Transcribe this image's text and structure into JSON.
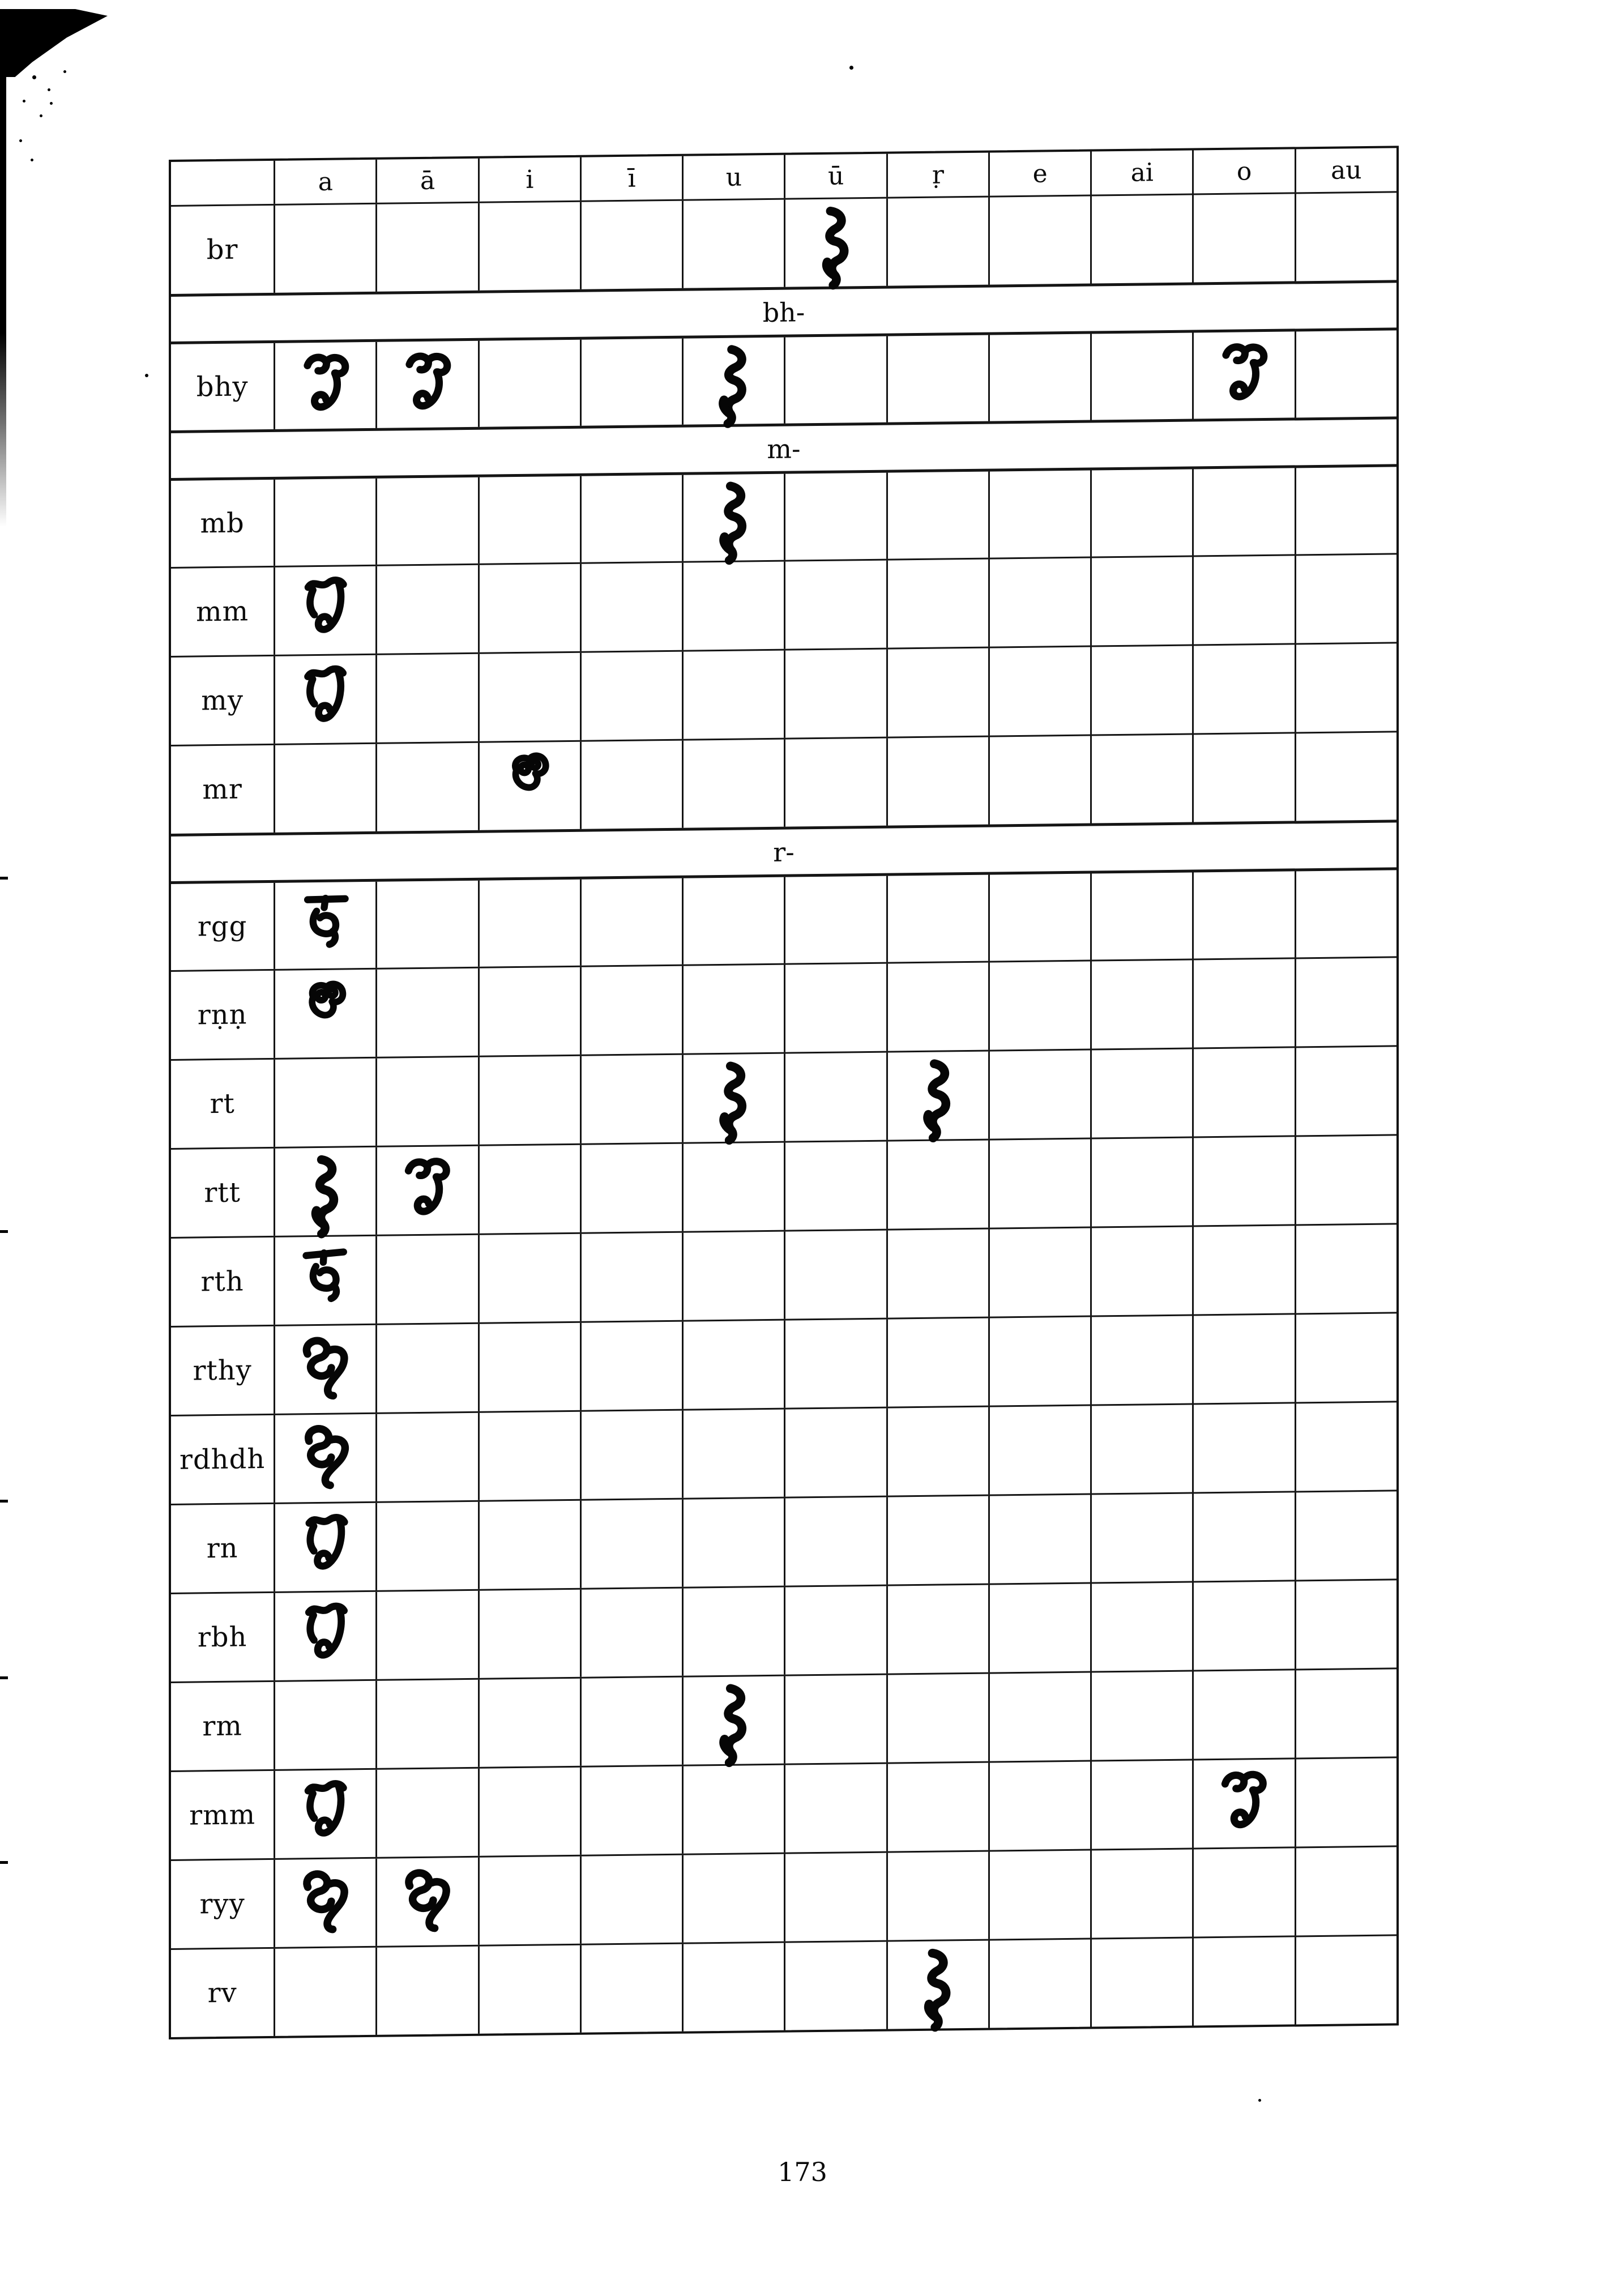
{
  "page": {
    "number": "173"
  },
  "colors": {
    "ink": "#0b0b0b",
    "paper": "#ffffff"
  },
  "table": {
    "vowel_headers": [
      "a",
      "ā",
      "i",
      "ī",
      "u",
      "ū",
      "ṛ",
      "e",
      "ai",
      "o",
      "au"
    ],
    "rows": [
      {
        "type": "data",
        "label": "br",
        "glyphs": [
          {
            "col": "ū",
            "variant": "g3"
          }
        ]
      },
      {
        "type": "section",
        "label": "bh-"
      },
      {
        "type": "data",
        "label": "bhy",
        "glyphs": [
          {
            "col": "a",
            "variant": "g2"
          },
          {
            "col": "ā",
            "variant": "g2"
          },
          {
            "col": "u",
            "variant": "g3"
          },
          {
            "col": "o",
            "variant": "g2"
          }
        ]
      },
      {
        "type": "section",
        "label": "m-"
      },
      {
        "type": "data",
        "label": "mb",
        "glyphs": [
          {
            "col": "u",
            "variant": "g3"
          }
        ]
      },
      {
        "type": "data",
        "label": "mm",
        "glyphs": [
          {
            "col": "a",
            "variant": "g1"
          }
        ]
      },
      {
        "type": "data",
        "label": "my",
        "glyphs": [
          {
            "col": "a",
            "variant": "g1"
          }
        ]
      },
      {
        "type": "data",
        "label": "mr",
        "glyphs": [
          {
            "col": "i",
            "variant": "g5"
          }
        ]
      },
      {
        "type": "section",
        "label": "r-"
      },
      {
        "type": "data",
        "label": "rgg",
        "glyphs": [
          {
            "col": "a",
            "variant": "g4"
          }
        ]
      },
      {
        "type": "data",
        "label": "rṇṇ",
        "glyphs": [
          {
            "col": "a",
            "variant": "g5"
          }
        ]
      },
      {
        "type": "data",
        "label": "rt",
        "glyphs": [
          {
            "col": "u",
            "variant": "g3"
          },
          {
            "col": "ṛ",
            "variant": "g3"
          }
        ]
      },
      {
        "type": "data",
        "label": "rtt",
        "glyphs": [
          {
            "col": "a",
            "variant": "g3"
          },
          {
            "col": "ā",
            "variant": "g2"
          }
        ]
      },
      {
        "type": "data",
        "label": "rth",
        "glyphs": [
          {
            "col": "a",
            "variant": "g4"
          }
        ]
      },
      {
        "type": "data",
        "label": "rthy",
        "glyphs": [
          {
            "col": "a",
            "variant": "g6"
          }
        ]
      },
      {
        "type": "data",
        "label": "rdhdh",
        "glyphs": [
          {
            "col": "a",
            "variant": "g6"
          }
        ]
      },
      {
        "type": "data",
        "label": "rn",
        "glyphs": [
          {
            "col": "a",
            "variant": "g1"
          }
        ]
      },
      {
        "type": "data",
        "label": "rbh",
        "glyphs": [
          {
            "col": "a",
            "variant": "g1"
          }
        ]
      },
      {
        "type": "data",
        "label": "rm",
        "glyphs": [
          {
            "col": "u",
            "variant": "g3"
          }
        ]
      },
      {
        "type": "data",
        "label": "rmm",
        "glyphs": [
          {
            "col": "a",
            "variant": "g1"
          },
          {
            "col": "o",
            "variant": "g2"
          }
        ]
      },
      {
        "type": "data",
        "label": "ryy",
        "glyphs": [
          {
            "col": "a",
            "variant": "g6"
          },
          {
            "col": "ā",
            "variant": "g6"
          }
        ]
      },
      {
        "type": "data",
        "label": "rv",
        "glyphs": [
          {
            "col": "ṛ",
            "variant": "g3"
          }
        ]
      }
    ]
  }
}
